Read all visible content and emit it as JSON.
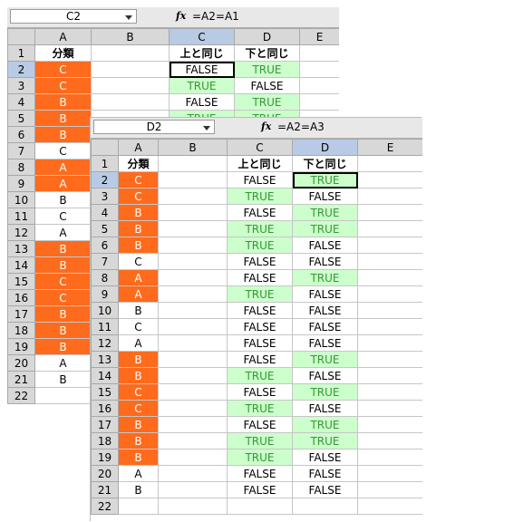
{
  "back": {
    "name_box": "C2",
    "fx": "fx",
    "formula": "=A2=A1",
    "columns": [
      "A",
      "B",
      "C",
      "D",
      "E"
    ],
    "selected_col": "C",
    "selected_row": 2,
    "active_col": "C",
    "rows": [
      {
        "n": "1",
        "a": "分類",
        "a_style": "hdr",
        "c": "上と同じ",
        "c_style": "hdr",
        "d": "下と同じ",
        "d_style": "hdr"
      },
      {
        "n": "2",
        "a": "C",
        "a_style": "orange",
        "c": "FALSE",
        "c_style": "false",
        "d": "TRUE",
        "d_style": "green"
      },
      {
        "n": "3",
        "a": "C",
        "a_style": "orange",
        "c": "TRUE",
        "c_style": "green",
        "d": "FALSE",
        "d_style": "false"
      },
      {
        "n": "4",
        "a": "B",
        "a_style": "orange",
        "c": "FALSE",
        "c_style": "false",
        "d": "TRUE",
        "d_style": "green"
      },
      {
        "n": "5",
        "a": "B",
        "a_style": "orange",
        "c": "TRUE",
        "c_style": "green",
        "d": "TRUE",
        "d_style": "green"
      },
      {
        "n": "6",
        "a": "B",
        "a_style": "orange",
        "c": "",
        "c_style": "",
        "d": "",
        "d_style": ""
      },
      {
        "n": "7",
        "a": "C",
        "a_style": "",
        "c": "",
        "c_style": "",
        "d": "",
        "d_style": ""
      },
      {
        "n": "8",
        "a": "A",
        "a_style": "orange",
        "c": "",
        "c_style": "",
        "d": "",
        "d_style": ""
      },
      {
        "n": "9",
        "a": "A",
        "a_style": "orange",
        "c": "",
        "c_style": "",
        "d": "",
        "d_style": ""
      },
      {
        "n": "10",
        "a": "B",
        "a_style": "",
        "c": "",
        "c_style": "",
        "d": "",
        "d_style": ""
      },
      {
        "n": "11",
        "a": "C",
        "a_style": "",
        "c": "",
        "c_style": "",
        "d": "",
        "d_style": ""
      },
      {
        "n": "12",
        "a": "A",
        "a_style": "",
        "c": "",
        "c_style": "",
        "d": "",
        "d_style": ""
      },
      {
        "n": "13",
        "a": "B",
        "a_style": "orange",
        "c": "",
        "c_style": "",
        "d": "",
        "d_style": ""
      },
      {
        "n": "14",
        "a": "B",
        "a_style": "orange",
        "c": "",
        "c_style": "",
        "d": "",
        "d_style": ""
      },
      {
        "n": "15",
        "a": "C",
        "a_style": "orange",
        "c": "",
        "c_style": "",
        "d": "",
        "d_style": ""
      },
      {
        "n": "16",
        "a": "C",
        "a_style": "orange",
        "c": "",
        "c_style": "",
        "d": "",
        "d_style": ""
      },
      {
        "n": "17",
        "a": "B",
        "a_style": "orange",
        "c": "",
        "c_style": "",
        "d": "",
        "d_style": ""
      },
      {
        "n": "18",
        "a": "B",
        "a_style": "orange",
        "c": "",
        "c_style": "",
        "d": "",
        "d_style": ""
      },
      {
        "n": "19",
        "a": "B",
        "a_style": "orange",
        "c": "",
        "c_style": "",
        "d": "",
        "d_style": ""
      },
      {
        "n": "20",
        "a": "A",
        "a_style": "",
        "c": "",
        "c_style": "",
        "d": "",
        "d_style": ""
      },
      {
        "n": "21",
        "a": "B",
        "a_style": "",
        "c": "",
        "c_style": "",
        "d": "",
        "d_style": ""
      },
      {
        "n": "22",
        "a": "",
        "a_style": "",
        "c": "",
        "c_style": "",
        "d": "",
        "d_style": ""
      }
    ]
  },
  "front": {
    "name_box": "D2",
    "fx": "fx",
    "formula": "=A2=A3",
    "columns": [
      "A",
      "B",
      "C",
      "D",
      "E"
    ],
    "selected_col": "D",
    "selected_row": 2,
    "active_col": "D",
    "rows": [
      {
        "n": "1",
        "a": "分類",
        "a_style": "hdr",
        "c": "上と同じ",
        "c_style": "hdr",
        "d": "下と同じ",
        "d_style": "hdr"
      },
      {
        "n": "2",
        "a": "C",
        "a_style": "orange",
        "c": "FALSE",
        "c_style": "false",
        "d": "TRUE",
        "d_style": "green"
      },
      {
        "n": "3",
        "a": "C",
        "a_style": "orange",
        "c": "TRUE",
        "c_style": "green",
        "d": "FALSE",
        "d_style": "false"
      },
      {
        "n": "4",
        "a": "B",
        "a_style": "orange",
        "c": "FALSE",
        "c_style": "false",
        "d": "TRUE",
        "d_style": "green"
      },
      {
        "n": "5",
        "a": "B",
        "a_style": "orange",
        "c": "TRUE",
        "c_style": "green",
        "d": "TRUE",
        "d_style": "green"
      },
      {
        "n": "6",
        "a": "B",
        "a_style": "orange",
        "c": "TRUE",
        "c_style": "green",
        "d": "FALSE",
        "d_style": "false"
      },
      {
        "n": "7",
        "a": "C",
        "a_style": "",
        "c": "FALSE",
        "c_style": "false",
        "d": "FALSE",
        "d_style": "false"
      },
      {
        "n": "8",
        "a": "A",
        "a_style": "orange",
        "c": "FALSE",
        "c_style": "false",
        "d": "TRUE",
        "d_style": "green"
      },
      {
        "n": "9",
        "a": "A",
        "a_style": "orange",
        "c": "TRUE",
        "c_style": "green",
        "d": "FALSE",
        "d_style": "false"
      },
      {
        "n": "10",
        "a": "B",
        "a_style": "",
        "c": "FALSE",
        "c_style": "false",
        "d": "FALSE",
        "d_style": "false"
      },
      {
        "n": "11",
        "a": "C",
        "a_style": "",
        "c": "FALSE",
        "c_style": "false",
        "d": "FALSE",
        "d_style": "false"
      },
      {
        "n": "12",
        "a": "A",
        "a_style": "",
        "c": "FALSE",
        "c_style": "false",
        "d": "FALSE",
        "d_style": "false"
      },
      {
        "n": "13",
        "a": "B",
        "a_style": "orange",
        "c": "FALSE",
        "c_style": "false",
        "d": "TRUE",
        "d_style": "green"
      },
      {
        "n": "14",
        "a": "B",
        "a_style": "orange",
        "c": "TRUE",
        "c_style": "green",
        "d": "FALSE",
        "d_style": "false"
      },
      {
        "n": "15",
        "a": "C",
        "a_style": "orange",
        "c": "FALSE",
        "c_style": "false",
        "d": "TRUE",
        "d_style": "green"
      },
      {
        "n": "16",
        "a": "C",
        "a_style": "orange",
        "c": "TRUE",
        "c_style": "green",
        "d": "FALSE",
        "d_style": "false"
      },
      {
        "n": "17",
        "a": "B",
        "a_style": "orange",
        "c": "FALSE",
        "c_style": "false",
        "d": "TRUE",
        "d_style": "green"
      },
      {
        "n": "18",
        "a": "B",
        "a_style": "orange",
        "c": "TRUE",
        "c_style": "green",
        "d": "TRUE",
        "d_style": "green"
      },
      {
        "n": "19",
        "a": "B",
        "a_style": "orange",
        "c": "TRUE",
        "c_style": "green",
        "d": "FALSE",
        "d_style": "false"
      },
      {
        "n": "20",
        "a": "A",
        "a_style": "",
        "c": "FALSE",
        "c_style": "false",
        "d": "FALSE",
        "d_style": "false"
      },
      {
        "n": "21",
        "a": "B",
        "a_style": "",
        "c": "FALSE",
        "c_style": "false",
        "d": "FALSE",
        "d_style": "false"
      },
      {
        "n": "22",
        "a": "",
        "a_style": "",
        "c": "",
        "c_style": "",
        "d": "",
        "d_style": ""
      }
    ]
  },
  "colors": {
    "orange": "#ff6b1c",
    "green_fill": "#ccffcc",
    "green_text": "#339933",
    "header_gray": "#d8d8d8",
    "selected_header": "#b9cbe4"
  }
}
